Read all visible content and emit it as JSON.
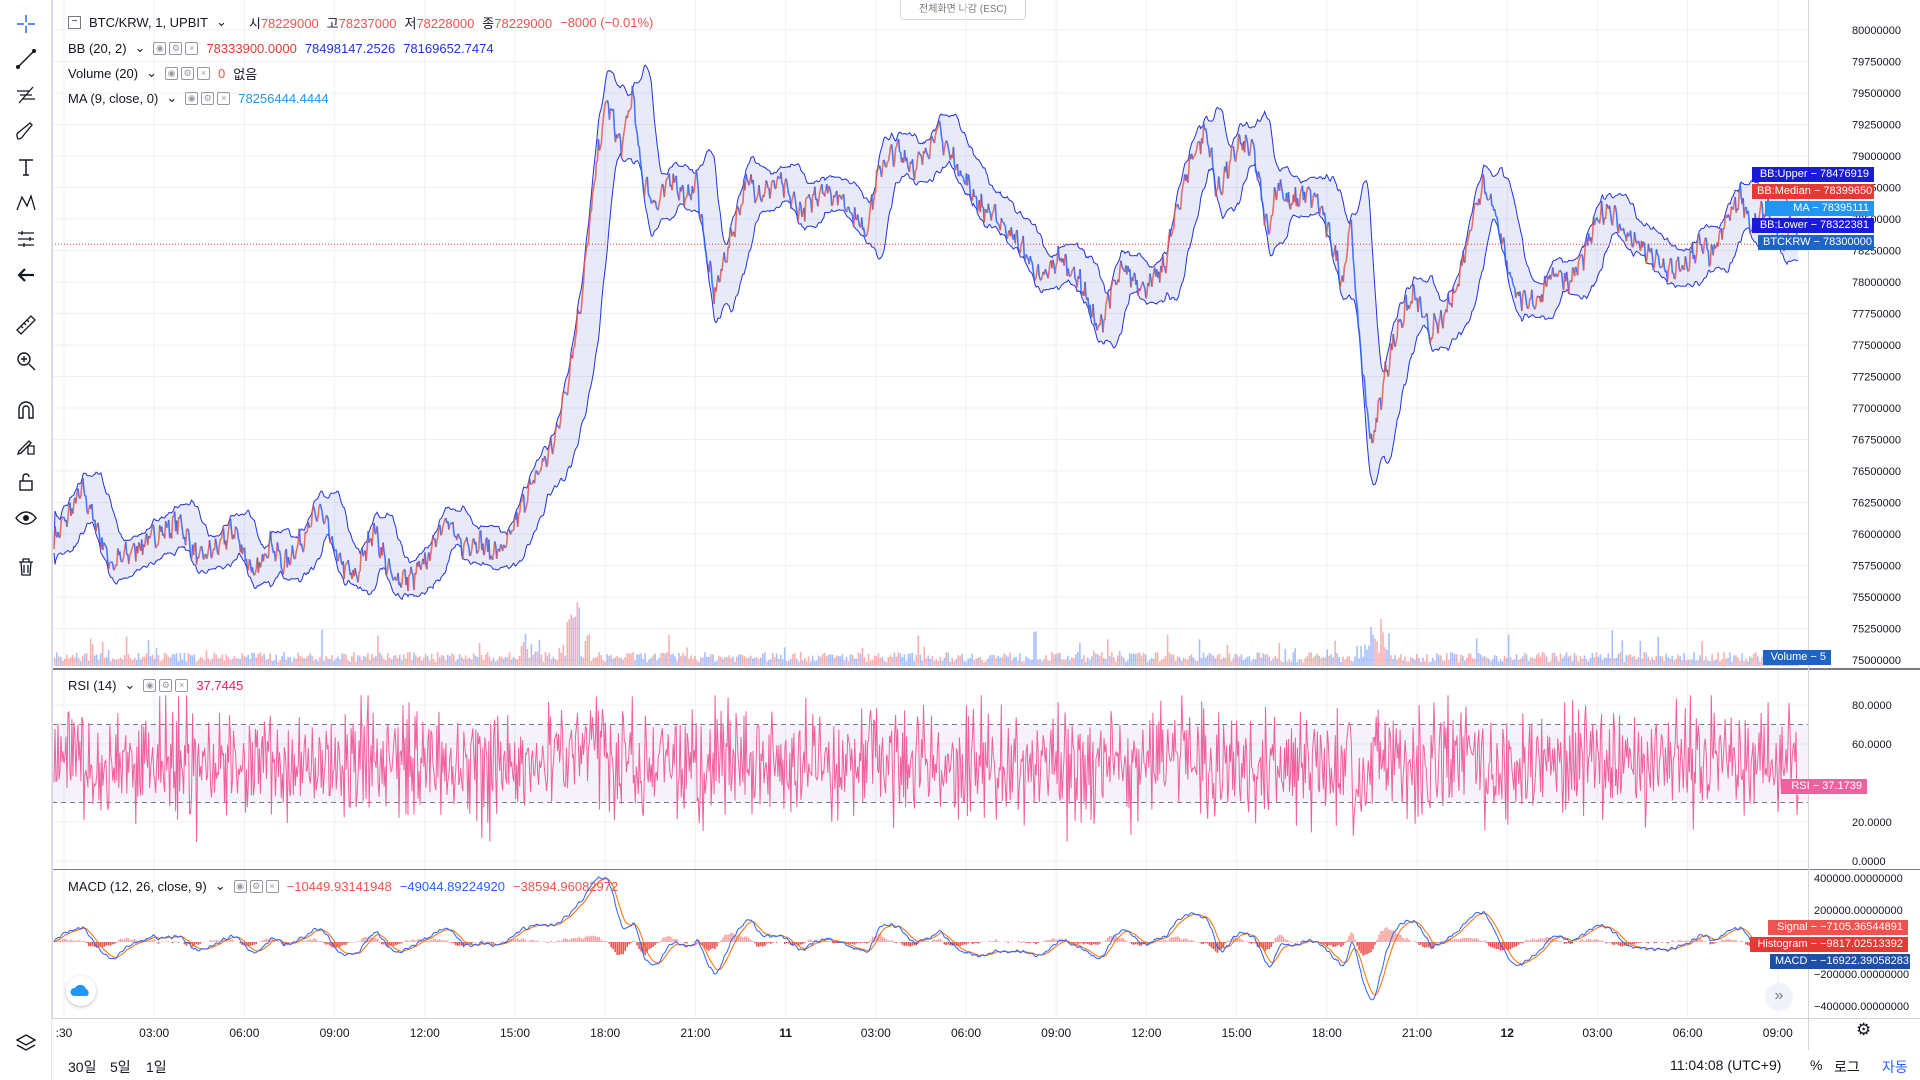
{
  "header": {
    "symbol": "BTC/KRW, 1, UPBIT",
    "o_label": "시",
    "o_val": "78229000",
    "h_label": "고",
    "h_val": "78237000",
    "l_label": "저",
    "l_val": "78228000",
    "c_label": "종",
    "c_val": "78229000",
    "change": "−8000 (−0.01%)",
    "fullscreen_exit": "전체화면 나감 (ESC)"
  },
  "indicators": {
    "bb": {
      "name": "BB (20, 2)",
      "v1": "78333900.0000",
      "v2": "78498147.2526",
      "v3": "78169652.7474"
    },
    "volume": {
      "name": "Volume (20)",
      "v1": "0",
      "v2": "없음"
    },
    "ma": {
      "name": "MA (9, close, 0)",
      "v1": "78256444.4444"
    },
    "rsi": {
      "name": "RSI (14)",
      "v1": "37.7445"
    },
    "macd": {
      "name": "MACD (12, 26, close, 9)",
      "v1": "−10449.93141948",
      "v2": "−49044.89224920",
      "v3": "−38594.96082972"
    }
  },
  "price_tags": {
    "bb_upper": "BB:Upper − 78476919",
    "bb_median": "BB:Median − 78399650",
    "ma": "MA − 78395111",
    "bb_lower": "BB:Lower − 78322381",
    "last": "BTCKRW − 78300000",
    "volume": "Volume − 5",
    "rsi": "RSI − 37.1739",
    "signal": "Signal − −7105.36544891",
    "histogram": "Histogram − −9817.02513392",
    "macd": "MACD − −16922.39058283"
  },
  "bottom": {
    "range_30d": "30일",
    "range_5d": "5일",
    "range_1d": "1일",
    "clock": "11:04:08 (UTC+9)",
    "percent": "%",
    "log": "로그",
    "auto": "자동"
  },
  "colors": {
    "up": "#ef5350",
    "down": "#26a69a",
    "candle_up": "#e8594f",
    "candle_down": "#2962ff",
    "bb": "#2233dd",
    "bb_fill": "rgba(33,150,243,0.12)",
    "rsi": "#f0609e",
    "rsi_band": "rgba(126,87,194,0.08)",
    "macd": "#2962ff",
    "signal": "#ff6d00",
    "hist_pos": "#f5a3a0",
    "hist_neg": "#ef5350",
    "grid": "#eef0f5",
    "last_line": "#e53935"
  },
  "icons": [
    "crosshair-icon",
    "trend-line-icon",
    "fib-icon",
    "brush-icon",
    "text-icon",
    "pattern-icon",
    "prediction-icon",
    "back-arrow-icon",
    "ruler-icon",
    "zoom-icon",
    "magnet-icon",
    "lock-draw-icon",
    "lock-icon",
    "eye-icon",
    "trash-icon",
    "layers-icon"
  ],
  "chart_data": [
    {
      "type": "candlestick",
      "title": "BTC/KRW, 1, UPBIT",
      "x_ticks": [
        ":30",
        "03:00",
        "06:00",
        "09:00",
        "12:00",
        "15:00",
        "18:00",
        "21:00",
        "11",
        "03:00",
        "06:00",
        "09:00",
        "12:00",
        "15:00",
        "18:00",
        "21:00",
        "12",
        "03:00",
        "06:00",
        "09:00"
      ],
      "y_ticks": [
        "80000000",
        "79750000",
        "79500000",
        "79250000",
        "79000000",
        "78750000",
        "78500000",
        "78250000",
        "78000000",
        "77750000",
        "77500000",
        "77250000",
        "77000000",
        "76750000",
        "76500000",
        "76250000",
        "76000000",
        "75750000",
        "75500000",
        "75250000",
        "75000000"
      ],
      "ylim": [
        75000000,
        80000000
      ],
      "close_path": [
        [
          0,
          75950000
        ],
        [
          40,
          76350000
        ],
        [
          80,
          75750000
        ],
        [
          130,
          75950000
        ],
        [
          175,
          76100000
        ],
        [
          200,
          75800000
        ],
        [
          230,
          75900000
        ],
        [
          250,
          76050000
        ],
        [
          280,
          75650000
        ],
        [
          300,
          75950000
        ],
        [
          320,
          75750000
        ],
        [
          345,
          75950000
        ],
        [
          370,
          76200000
        ],
        [
          380,
          76050000
        ],
        [
          395,
          75800000
        ],
        [
          420,
          75650000
        ],
        [
          445,
          76050000
        ],
        [
          470,
          75650000
        ],
        [
          500,
          75650000
        ],
        [
          520,
          75800000
        ],
        [
          545,
          76150000
        ],
        [
          565,
          75900000
        ],
        [
          590,
          75950000
        ],
        [
          610,
          75850000
        ],
        [
          630,
          75900000
        ],
        [
          650,
          76200000
        ],
        [
          675,
          76500000
        ],
        [
          695,
          76700000
        ],
        [
          715,
          77200000
        ],
        [
          735,
          77900000
        ],
        [
          755,
          78900000
        ],
        [
          770,
          79450000
        ],
        [
          790,
          79050000
        ],
        [
          805,
          79500000
        ],
        [
          820,
          78800000
        ],
        [
          840,
          78600000
        ],
        [
          860,
          78850000
        ],
        [
          880,
          78650000
        ],
        [
          895,
          78800000
        ],
        [
          910,
          78150000
        ],
        [
          920,
          77900000
        ],
        [
          940,
          78300000
        ],
        [
          965,
          78800000
        ],
        [
          985,
          78700000
        ],
        [
          1010,
          78800000
        ],
        [
          1040,
          78550000
        ],
        [
          1070,
          78750000
        ],
        [
          1100,
          78650000
        ],
        [
          1130,
          78400000
        ],
        [
          1150,
          78900000
        ],
        [
          1175,
          79050000
        ],
        [
          1200,
          78900000
        ],
        [
          1230,
          79200000
        ],
        [
          1260,
          78900000
        ],
        [
          1290,
          78600000
        ],
        [
          1315,
          78500000
        ],
        [
          1345,
          78300000
        ],
        [
          1375,
          78000000
        ],
        [
          1400,
          78200000
        ],
        [
          1430,
          78000000
        ],
        [
          1455,
          77600000
        ],
        [
          1470,
          77900000
        ],
        [
          1490,
          78100000
        ],
        [
          1520,
          77950000
        ],
        [
          1545,
          78100000
        ],
        [
          1565,
          78600000
        ],
        [
          1585,
          79000000
        ],
        [
          1605,
          79200000
        ],
        [
          1620,
          78700000
        ],
        [
          1635,
          78900000
        ],
        [
          1650,
          79100000
        ],
        [
          1670,
          79050000
        ],
        [
          1690,
          78400000
        ],
        [
          1705,
          78800000
        ],
        [
          1720,
          78600000
        ],
        [
          1740,
          78700000
        ],
        [
          1760,
          78650000
        ],
        [
          1780,
          78300000
        ],
        [
          1795,
          78000000
        ],
        [
          1805,
          78500000
        ],
        [
          1820,
          77400000
        ],
        [
          1835,
          76700000
        ],
        [
          1855,
          77300000
        ],
        [
          1875,
          77700000
        ],
        [
          1895,
          77900000
        ],
        [
          1915,
          77600000
        ],
        [
          1935,
          77700000
        ],
        [
          1955,
          78000000
        ],
        [
          1975,
          78500000
        ],
        [
          1990,
          78800000
        ],
        [
          2010,
          78500000
        ],
        [
          2030,
          78000000
        ],
        [
          2050,
          77800000
        ],
        [
          2070,
          77900000
        ],
        [
          2090,
          78100000
        ],
        [
          2110,
          78000000
        ],
        [
          2130,
          78200000
        ],
        [
          2150,
          78500000
        ],
        [
          2165,
          78600000
        ],
        [
          2185,
          78400000
        ],
        [
          2205,
          78300000
        ],
        [
          2225,
          78200000
        ],
        [
          2245,
          78100000
        ],
        [
          2270,
          78100000
        ],
        [
          2290,
          78300000
        ],
        [
          2310,
          78200000
        ],
        [
          2330,
          78500000
        ],
        [
          2350,
          78700000
        ],
        [
          2365,
          78400000
        ],
        [
          2385,
          78600000
        ],
        [
          2400,
          78350000
        ],
        [
          2410,
          78250000
        ],
        [
          2420,
          78500000
        ],
        [
          2430,
          78300000
        ]
      ],
      "last_price": 78300000
    },
    {
      "type": "bar",
      "title": "Volume (20)",
      "spikes": [
        [
          660,
          3.2
        ],
        [
          725,
          6.0
        ],
        [
          1720,
          1.5
        ],
        [
          1840,
          5.2
        ]
      ],
      "last_value": 5
    },
    {
      "type": "line",
      "title": "RSI (14)",
      "y_ticks": [
        "80.0000",
        "60.0000",
        "20.0000",
        "0.0000"
      ],
      "ylim": [
        0,
        80
      ],
      "bands": [
        30,
        70
      ],
      "last_value": 37.1739
    },
    {
      "type": "line",
      "title": "MACD (12, 26, close, 9)",
      "series": [
        {
          "name": "MACD"
        },
        {
          "name": "Signal"
        },
        {
          "name": "Histogram"
        }
      ],
      "y_ticks": [
        "400000.00000000",
        "200000.00000000",
        "0.00000000",
        "−200000.00000000",
        "−400000.00000000"
      ],
      "ylim": [
        -400000,
        400000
      ]
    }
  ]
}
